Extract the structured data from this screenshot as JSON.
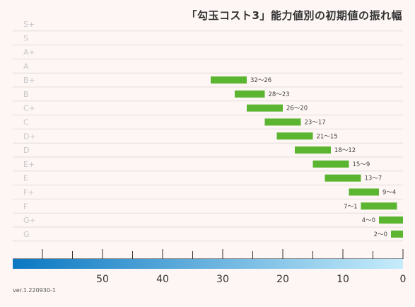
{
  "title": "「勾玉コスト3」能力値別の初期値の振れ幅",
  "version": "ver.1.220930-1",
  "colors": {
    "bar": "#5cb531",
    "background": "#fdf6f4",
    "gradient_left": "#0a78c2",
    "gradient_right": "#c6ecfb",
    "grid": "#e4dcd8"
  },
  "chart_data": {
    "type": "bar",
    "orientation": "horizontal-range",
    "categories": [
      "S+",
      "S",
      "A+",
      "A",
      "B+",
      "B",
      "C+",
      "C",
      "D+",
      "D",
      "E+",
      "E",
      "F+",
      "F",
      "G+",
      "G"
    ],
    "ranges": [
      null,
      null,
      null,
      null,
      {
        "label": "32～26",
        "low": 26,
        "high": 32
      },
      {
        "label": "28～23",
        "low": 23,
        "high": 28
      },
      {
        "label": "26～20",
        "low": 20,
        "high": 26
      },
      {
        "label": "23～17",
        "low": 17,
        "high": 23
      },
      {
        "label": "21～15",
        "low": 15,
        "high": 21
      },
      {
        "label": "18～12",
        "low": 12,
        "high": 18
      },
      {
        "label": "15～9",
        "low": 9,
        "high": 15
      },
      {
        "label": "13～7",
        "low": 7,
        "high": 13
      },
      {
        "label": "9～4",
        "low": 4,
        "high": 9
      },
      {
        "label": "7～1",
        "low": 1,
        "high": 7
      },
      {
        "label": "4～0",
        "low": 0,
        "high": 4
      },
      {
        "label": "2～0",
        "low": 0,
        "high": 2
      }
    ],
    "x_axis": {
      "reversed": true,
      "xlim": [
        0,
        65
      ],
      "major_ticks": [
        50,
        40,
        30,
        20,
        10,
        0
      ],
      "minor_step": 5,
      "tick_labels": [
        "50",
        "40",
        "30",
        "20",
        "10",
        "0"
      ]
    },
    "grid": true
  }
}
